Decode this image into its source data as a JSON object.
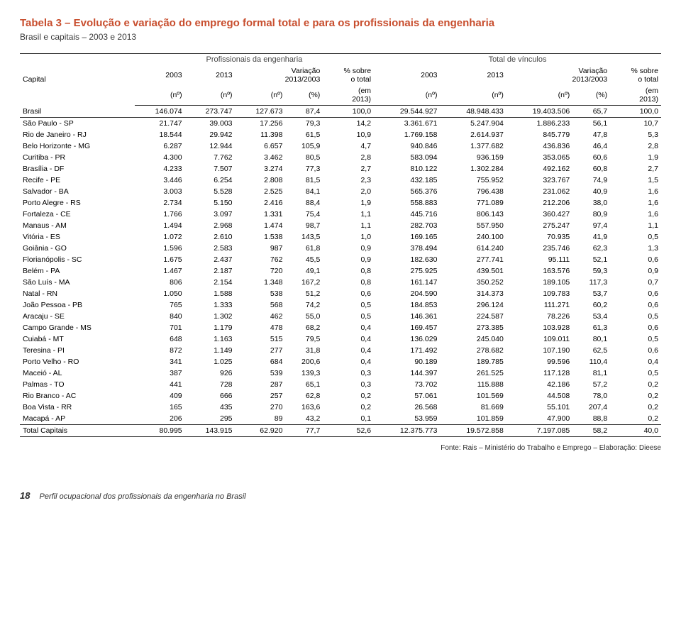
{
  "title": "Tabela 3 – Evolução e variação do emprego formal total e para os profissionais da engenharia",
  "subtitle": "Brasil e capitais – 2003 e 2013",
  "header": {
    "capital": "Capital",
    "group_prof": "Profissionais da engenharia",
    "group_tot": "Total de vínculos",
    "y2003": "2003",
    "y2013": "2013",
    "var": "Variação\n2013/2003",
    "pct": "% sobre\no total",
    "var_a": "Variação",
    "var_b": "2013/2003",
    "pct_a": "% sobre",
    "pct_b": "o total",
    "unit_no": "(nº)",
    "unit_pct": "(%)",
    "unit_em": "(em\n2013)",
    "unit_em_a": "(em",
    "unit_em_b": "2013)"
  },
  "rows": [
    {
      "c": "Brasil",
      "p03": "146.074",
      "p13": "273.747",
      "pv": "127.673",
      "pvp": "87,4",
      "ppt": "100,0",
      "t03": "29.544.927",
      "t13": "48.948.433",
      "tv": "19.403.506",
      "tvp": "65,7",
      "tpt": "100,0",
      "bold": true,
      "sep_bottom": true
    },
    {
      "c": "São Paulo - SP",
      "p03": "21.747",
      "p13": "39.003",
      "pv": "17.256",
      "pvp": "79,3",
      "ppt": "14,2",
      "t03": "3.361.671",
      "t13": "5.247.904",
      "tv": "1.886.233",
      "tvp": "56,1",
      "tpt": "10,7"
    },
    {
      "c": "Rio de Janeiro - RJ",
      "p03": "18.544",
      "p13": "29.942",
      "pv": "11.398",
      "pvp": "61,5",
      "ppt": "10,9",
      "t03": "1.769.158",
      "t13": "2.614.937",
      "tv": "845.779",
      "tvp": "47,8",
      "tpt": "5,3"
    },
    {
      "c": "Belo Horizonte - MG",
      "p03": "6.287",
      "p13": "12.944",
      "pv": "6.657",
      "pvp": "105,9",
      "ppt": "4,7",
      "t03": "940.846",
      "t13": "1.377.682",
      "tv": "436.836",
      "tvp": "46,4",
      "tpt": "2,8"
    },
    {
      "c": "Curitiba - PR",
      "p03": "4.300",
      "p13": "7.762",
      "pv": "3.462",
      "pvp": "80,5",
      "ppt": "2,8",
      "t03": "583.094",
      "t13": "936.159",
      "tv": "353.065",
      "tvp": "60,6",
      "tpt": "1,9"
    },
    {
      "c": "Brasília - DF",
      "p03": "4.233",
      "p13": "7.507",
      "pv": "3.274",
      "pvp": "77,3",
      "ppt": "2,7",
      "t03": "810.122",
      "t13": "1.302.284",
      "tv": "492.162",
      "tvp": "60,8",
      "tpt": "2,7"
    },
    {
      "c": "Recife - PE",
      "p03": "3.446",
      "p13": "6.254",
      "pv": "2.808",
      "pvp": "81,5",
      "ppt": "2,3",
      "t03": "432.185",
      "t13": "755.952",
      "tv": "323.767",
      "tvp": "74,9",
      "tpt": "1,5"
    },
    {
      "c": "Salvador - BA",
      "p03": "3.003",
      "p13": "5.528",
      "pv": "2.525",
      "pvp": "84,1",
      "ppt": "2,0",
      "t03": "565.376",
      "t13": "796.438",
      "tv": "231.062",
      "tvp": "40,9",
      "tpt": "1,6"
    },
    {
      "c": "Porto Alegre - RS",
      "p03": "2.734",
      "p13": "5.150",
      "pv": "2.416",
      "pvp": "88,4",
      "ppt": "1,9",
      "t03": "558.883",
      "t13": "771.089",
      "tv": "212.206",
      "tvp": "38,0",
      "tpt": "1,6"
    },
    {
      "c": "Fortaleza - CE",
      "p03": "1.766",
      "p13": "3.097",
      "pv": "1.331",
      "pvp": "75,4",
      "ppt": "1,1",
      "t03": "445.716",
      "t13": "806.143",
      "tv": "360.427",
      "tvp": "80,9",
      "tpt": "1,6"
    },
    {
      "c": "Manaus - AM",
      "p03": "1.494",
      "p13": "2.968",
      "pv": "1.474",
      "pvp": "98,7",
      "ppt": "1,1",
      "t03": "282.703",
      "t13": "557.950",
      "tv": "275.247",
      "tvp": "97,4",
      "tpt": "1,1"
    },
    {
      "c": "Vitória - ES",
      "p03": "1.072",
      "p13": "2.610",
      "pv": "1.538",
      "pvp": "143,5",
      "ppt": "1,0",
      "t03": "169.165",
      "t13": "240.100",
      "tv": "70.935",
      "tvp": "41,9",
      "tpt": "0,5"
    },
    {
      "c": "Goiânia - GO",
      "p03": "1.596",
      "p13": "2.583",
      "pv": "987",
      "pvp": "61,8",
      "ppt": "0,9",
      "t03": "378.494",
      "t13": "614.240",
      "tv": "235.746",
      "tvp": "62,3",
      "tpt": "1,3"
    },
    {
      "c": "Florianópolis - SC",
      "p03": "1.675",
      "p13": "2.437",
      "pv": "762",
      "pvp": "45,5",
      "ppt": "0,9",
      "t03": "182.630",
      "t13": "277.741",
      "tv": "95.111",
      "tvp": "52,1",
      "tpt": "0,6"
    },
    {
      "c": "Belém - PA",
      "p03": "1.467",
      "p13": "2.187",
      "pv": "720",
      "pvp": "49,1",
      "ppt": "0,8",
      "t03": "275.925",
      "t13": "439.501",
      "tv": "163.576",
      "tvp": "59,3",
      "tpt": "0,9"
    },
    {
      "c": "São Luís - MA",
      "p03": "806",
      "p13": "2.154",
      "pv": "1.348",
      "pvp": "167,2",
      "ppt": "0,8",
      "t03": "161.147",
      "t13": "350.252",
      "tv": "189.105",
      "tvp": "117,3",
      "tpt": "0,7"
    },
    {
      "c": "Natal - RN",
      "p03": "1.050",
      "p13": "1.588",
      "pv": "538",
      "pvp": "51,2",
      "ppt": "0,6",
      "t03": "204.590",
      "t13": "314.373",
      "tv": "109.783",
      "tvp": "53,7",
      "tpt": "0,6"
    },
    {
      "c": "João Pessoa - PB",
      "p03": "765",
      "p13": "1.333",
      "pv": "568",
      "pvp": "74,2",
      "ppt": "0,5",
      "t03": "184.853",
      "t13": "296.124",
      "tv": "111.271",
      "tvp": "60,2",
      "tpt": "0,6"
    },
    {
      "c": "Aracaju - SE",
      "p03": "840",
      "p13": "1.302",
      "pv": "462",
      "pvp": "55,0",
      "ppt": "0,5",
      "t03": "146.361",
      "t13": "224.587",
      "tv": "78.226",
      "tvp": "53,4",
      "tpt": "0,5"
    },
    {
      "c": "Campo Grande - MS",
      "p03": "701",
      "p13": "1.179",
      "pv": "478",
      "pvp": "68,2",
      "ppt": "0,4",
      "t03": "169.457",
      "t13": "273.385",
      "tv": "103.928",
      "tvp": "61,3",
      "tpt": "0,6"
    },
    {
      "c": "Cuiabá - MT",
      "p03": "648",
      "p13": "1.163",
      "pv": "515",
      "pvp": "79,5",
      "ppt": "0,4",
      "t03": "136.029",
      "t13": "245.040",
      "tv": "109.011",
      "tvp": "80,1",
      "tpt": "0,5"
    },
    {
      "c": "Teresina - PI",
      "p03": "872",
      "p13": "1.149",
      "pv": "277",
      "pvp": "31,8",
      "ppt": "0,4",
      "t03": "171.492",
      "t13": "278.682",
      "tv": "107.190",
      "tvp": "62,5",
      "tpt": "0,6"
    },
    {
      "c": "Porto Velho - RO",
      "p03": "341",
      "p13": "1.025",
      "pv": "684",
      "pvp": "200,6",
      "ppt": "0,4",
      "t03": "90.189",
      "t13": "189.785",
      "tv": "99.596",
      "tvp": "110,4",
      "tpt": "0,4"
    },
    {
      "c": "Maceió - AL",
      "p03": "387",
      "p13": "926",
      "pv": "539",
      "pvp": "139,3",
      "ppt": "0,3",
      "t03": "144.397",
      "t13": "261.525",
      "tv": "117.128",
      "tvp": "81,1",
      "tpt": "0,5"
    },
    {
      "c": "Palmas - TO",
      "p03": "441",
      "p13": "728",
      "pv": "287",
      "pvp": "65,1",
      "ppt": "0,3",
      "t03": "73.702",
      "t13": "115.888",
      "tv": "42.186",
      "tvp": "57,2",
      "tpt": "0,2"
    },
    {
      "c": "Rio Branco - AC",
      "p03": "409",
      "p13": "666",
      "pv": "257",
      "pvp": "62,8",
      "ppt": "0,2",
      "t03": "57.061",
      "t13": "101.569",
      "tv": "44.508",
      "tvp": "78,0",
      "tpt": "0,2"
    },
    {
      "c": "Boa Vista - RR",
      "p03": "165",
      "p13": "435",
      "pv": "270",
      "pvp": "163,6",
      "ppt": "0,2",
      "t03": "26.568",
      "t13": "81.669",
      "tv": "55.101",
      "tvp": "207,4",
      "tpt": "0,2"
    },
    {
      "c": "Macapá - AP",
      "p03": "206",
      "p13": "295",
      "pv": "89",
      "pvp": "43,2",
      "ppt": "0,1",
      "t03": "53.959",
      "t13": "101.859",
      "tv": "47.900",
      "tvp": "88,8",
      "tpt": "0,2"
    },
    {
      "c": "Total Capitais",
      "p03": "80.995",
      "p13": "143.915",
      "pv": "62.920",
      "pvp": "77,7",
      "ppt": "52,6",
      "t03": "12.375.773",
      "t13": "19.572.858",
      "tv": "7.197.085",
      "tvp": "58,2",
      "tpt": "40,0",
      "bold": true,
      "sep_top": true,
      "sep_bottom": true
    }
  ],
  "source": "Fonte: Rais – Ministério do Trabalho e Emprego – Elaboração: Dieese",
  "footer": {
    "page": "18",
    "text": "Perfil ocupacional dos profissionais da engenharia no Brasil"
  }
}
